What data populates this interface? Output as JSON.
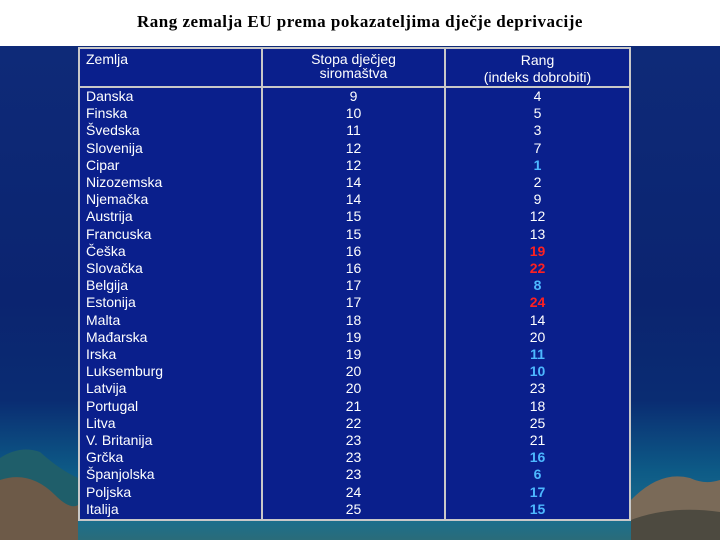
{
  "title": "Rang zemalja EU prema pokazateljima dječje deprivacije",
  "table": {
    "headers": {
      "country": "Zemlja",
      "poverty_line1": "Stopa dječjeg",
      "poverty_line2": "siromaštva",
      "rank_line1": "Rang",
      "rank_line2": "(indeks dobrobiti)"
    },
    "rows": [
      {
        "country": "Danska",
        "poverty": "9",
        "rank": "4",
        "style": "normal"
      },
      {
        "country": "Finska",
        "poverty": "10",
        "rank": "5",
        "style": "normal"
      },
      {
        "country": "Švedska",
        "poverty": "11",
        "rank": "3",
        "style": "normal"
      },
      {
        "country": "Slovenija",
        "poverty": "12",
        "rank": "7",
        "style": "normal"
      },
      {
        "country": "Cipar",
        "poverty": "12",
        "rank": "1",
        "style": "blue"
      },
      {
        "country": "Nizozemska",
        "poverty": "14",
        "rank": "2",
        "style": "normal"
      },
      {
        "country": "Njemačka",
        "poverty": "14",
        "rank": "9",
        "style": "normal"
      },
      {
        "country": "Austrija",
        "poverty": "15",
        "rank": "12",
        "style": "normal"
      },
      {
        "country": "Francuska",
        "poverty": "15",
        "rank": "13",
        "style": "normal"
      },
      {
        "country": "Češka",
        "poverty": "16",
        "rank": "19",
        "style": "red"
      },
      {
        "country": "Slovačka",
        "poverty": "16",
        "rank": "22",
        "style": "red"
      },
      {
        "country": "Belgija",
        "poverty": "17",
        "rank": "8",
        "style": "blue"
      },
      {
        "country": "Estonija",
        "poverty": "17",
        "rank": "24",
        "style": "red"
      },
      {
        "country": "Malta",
        "poverty": "18",
        "rank": "14",
        "style": "normal"
      },
      {
        "country": "Mađarska",
        "poverty": "19",
        "rank": "20",
        "style": "normal"
      },
      {
        "country": "Irska",
        "poverty": "19",
        "rank": "11",
        "style": "blue"
      },
      {
        "country": "Luksemburg",
        "poverty": "20",
        "rank": "10",
        "style": "blue"
      },
      {
        "country": "Latvija",
        "poverty": "20",
        "rank": "23",
        "style": "normal"
      },
      {
        "country": "Portugal",
        "poverty": "21",
        "rank": "18",
        "style": "normal"
      },
      {
        "country": "Litva",
        "poverty": "22",
        "rank": "25",
        "style": "normal"
      },
      {
        "country": "V. Britanija",
        "poverty": "23",
        "rank": "21",
        "style": "normal"
      },
      {
        "country": "Grčka",
        "poverty": "23",
        "rank": "16",
        "style": "blue"
      },
      {
        "country": "Španjolska",
        "poverty": "23",
        "rank": "6",
        "style": "blue"
      },
      {
        "country": "Poljska",
        "poverty": "24",
        "rank": "17",
        "style": "blue"
      },
      {
        "country": "Italija",
        "poverty": "25",
        "rank": "15",
        "style": "blue"
      }
    ]
  },
  "colors": {
    "table_bg": "#0a1f8c",
    "text": "#ffffff",
    "highlight_red": "#ff2020",
    "highlight_blue": "#4db8ff"
  }
}
